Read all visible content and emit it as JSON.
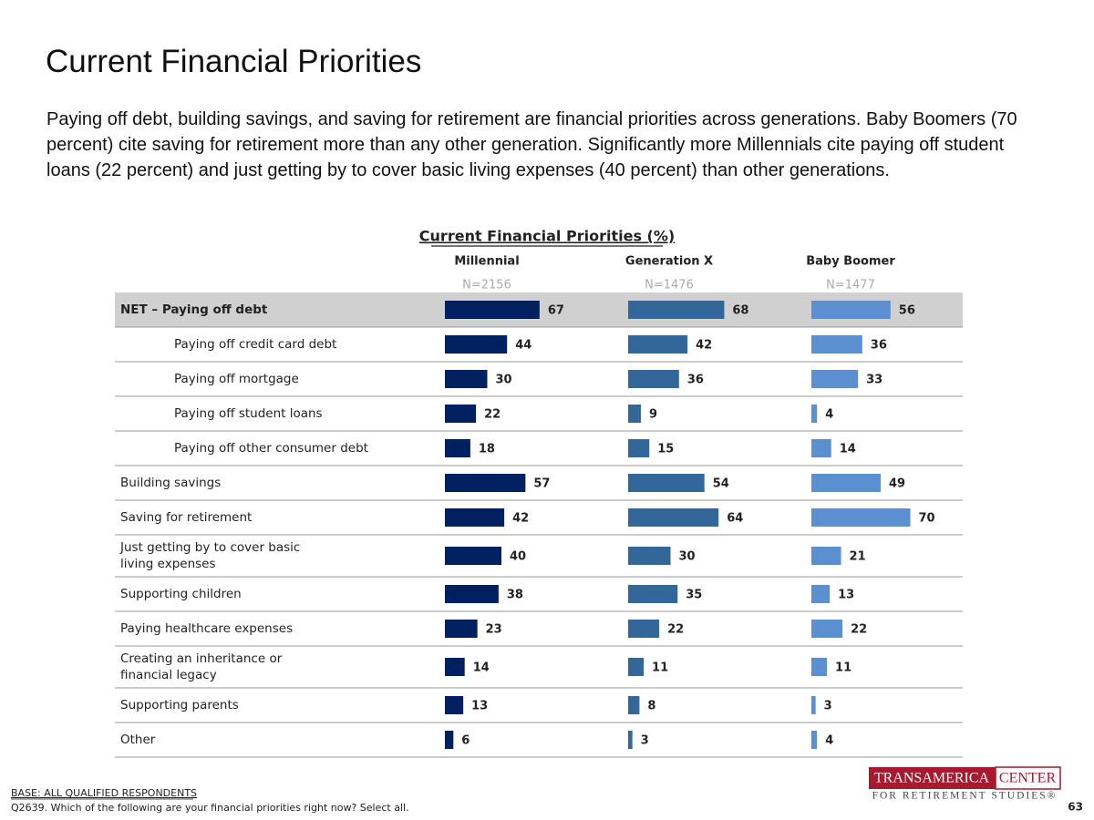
{
  "title": "Current Financial Priorities",
  "description": "Paying off debt, building savings, and saving for retirement are financial priorities across generations. Baby Boomers (70 percent) cite saving for retirement more than any other generation. Significantly more Millennials cite paying off student loans (22 percent) and just getting by to cover basic living expenses (40 percent) than other generations.",
  "chart_data": {
    "type": "bar",
    "title": "Current Financial Priorities (%)",
    "categories": [
      "NET – Paying off debt",
      "Paying off credit card debt",
      "Paying off mortgage",
      "Paying off student loans",
      "Paying off other consumer debt",
      "Building savings",
      "Saving for retirement",
      "Just getting by to cover basic living expenses",
      "Supporting children",
      "Paying healthcare expenses",
      "Creating an inheritance or financial legacy",
      "Supporting parents",
      "Other"
    ],
    "series": [
      {
        "name": "Millennial",
        "sample": "N=2156",
        "color": "#002060",
        "values": [
          67,
          44,
          30,
          22,
          18,
          57,
          42,
          40,
          38,
          23,
          14,
          13,
          6
        ]
      },
      {
        "name": "Generation X",
        "sample": "N=1476",
        "color": "#336699",
        "values": [
          68,
          42,
          36,
          9,
          15,
          54,
          64,
          30,
          35,
          22,
          11,
          8,
          3
        ]
      },
      {
        "name": "Baby Boomer",
        "sample": "N=1477",
        "color": "#5b8fcf",
        "values": [
          56,
          36,
          33,
          4,
          14,
          49,
          70,
          21,
          13,
          22,
          11,
          3,
          4
        ]
      }
    ]
  },
  "footer": {
    "base": "BASE:  ALL QUALIFIED RESPONDENTS",
    "question": "Q2639. Which of the following are your financial priorities right now? Select all."
  },
  "logo": {
    "name": "TRANSAMERICA",
    "center": "CENTER",
    "tagline": "FOR RETIREMENT STUDIES®"
  },
  "page_number": "63"
}
